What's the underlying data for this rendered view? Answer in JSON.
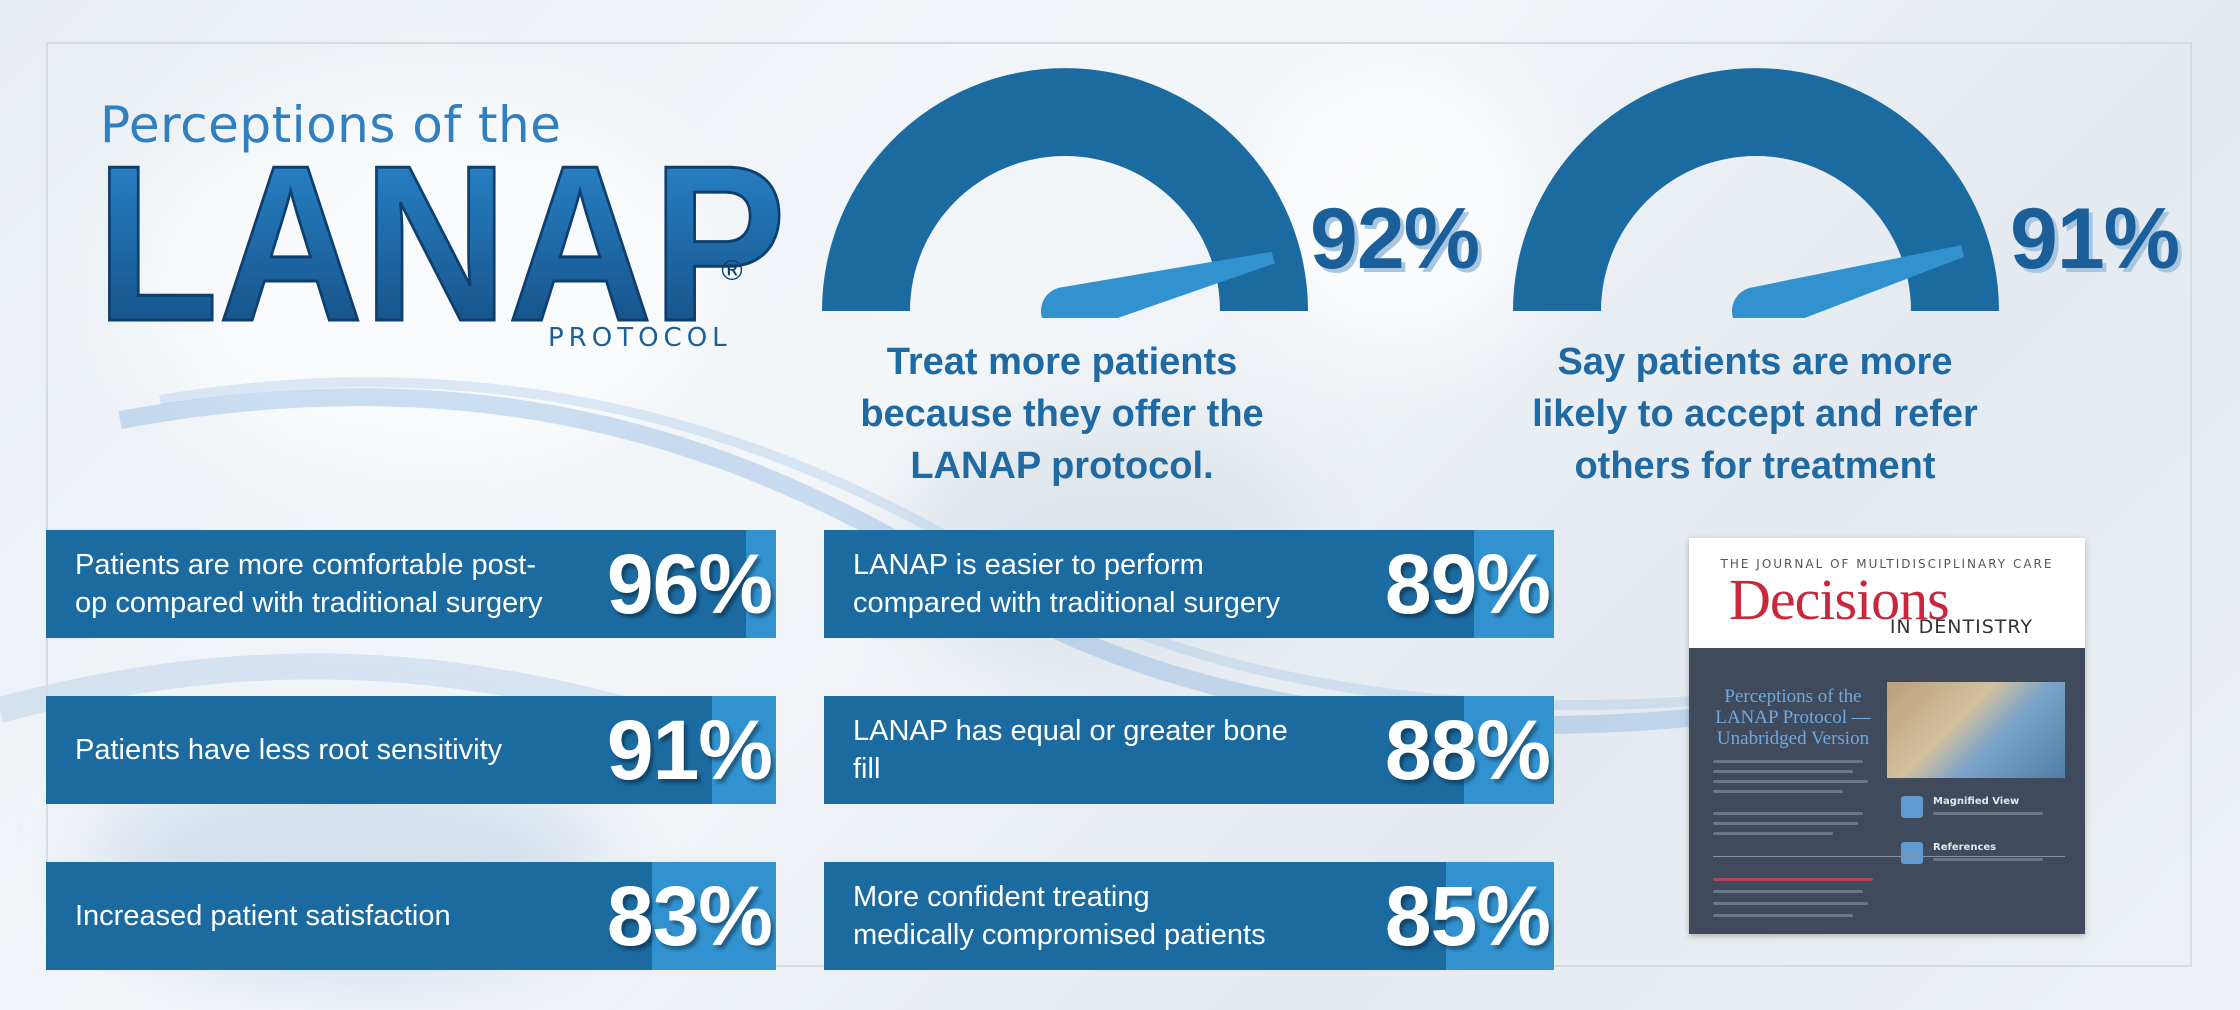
{
  "header": {
    "title_top": "Perceptions of the",
    "logo_text": "LANAP",
    "registered": "®",
    "subtitle": "PROTOCOL"
  },
  "gauges": [
    {
      "value": 92,
      "label": "92%",
      "caption": [
        "Treat more patients",
        "because they offer the",
        "LANAP protocol."
      ]
    },
    {
      "value": 91,
      "label": "91%",
      "caption": [
        "Say patients are more",
        "likely to accept and refer",
        "others for treatment"
      ]
    }
  ],
  "stats": [
    {
      "text": [
        "Patients are more comfortable post-",
        "op compared with traditional surgery"
      ],
      "value": "96%"
    },
    {
      "text": [
        "LANAP is easier to perform",
        "compared with traditional surgery"
      ],
      "value": "89%"
    },
    {
      "text": [
        "Patients have less root sensitivity"
      ],
      "value": "91%"
    },
    {
      "text": [
        "LANAP has equal or greater bone",
        "fill"
      ],
      "value": "88%"
    },
    {
      "text": [
        "Increased patient satisfaction"
      ],
      "value": "83%"
    },
    {
      "text": [
        "More confident treating",
        "medically compromised patients"
      ],
      "value": "85%"
    }
  ],
  "journal": {
    "kicker": "THE JOURNAL OF MULTIDISCIPLINARY CARE",
    "name": "Decisions",
    "sub": "IN DENTISTRY",
    "article_title": "Perceptions of the LANAP Protocol — Unabridged Version",
    "side_label_1": "Magnified View",
    "side_label_2": "References"
  },
  "colors": {
    "primary": "#1b6aa0",
    "accent": "#3192cf",
    "title": "#2f7fc1",
    "journal_red": "#c8283c"
  }
}
